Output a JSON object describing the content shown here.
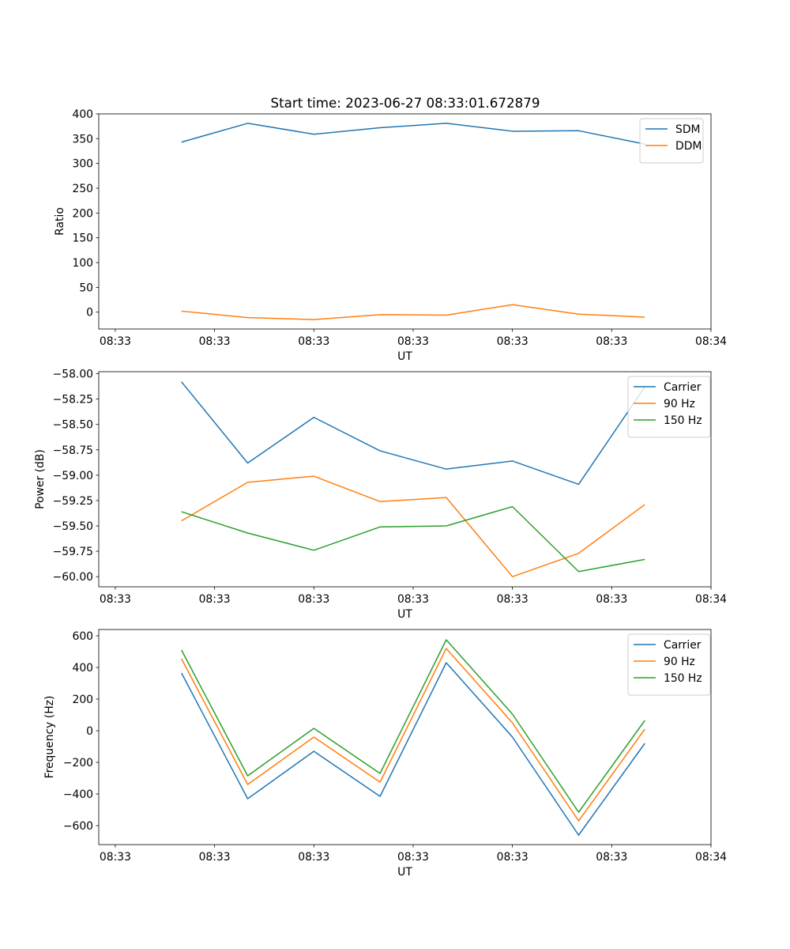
{
  "figure": {
    "title": "Start time: 2023-06-27 08:33:01.672879"
  },
  "chart_data": [
    {
      "type": "line",
      "name": "ratio-panel",
      "x": [
        1,
        2,
        3,
        4,
        5,
        6,
        7,
        8
      ],
      "series": [
        {
          "name": "SDM",
          "color": "#1f77b4",
          "values": [
            343,
            381,
            359,
            372,
            381,
            365,
            366,
            339
          ]
        },
        {
          "name": "DDM",
          "color": "#ff7f0e",
          "values": [
            2,
            -11,
            -15,
            -5,
            -6,
            15,
            -4,
            -10
          ]
        }
      ],
      "xlim": [
        -0.25,
        9.0
      ],
      "ylim": [
        -34,
        400
      ],
      "yticks": [
        0,
        50,
        100,
        150,
        200,
        250,
        300,
        350,
        400
      ],
      "yticklabels": [
        "0",
        "50",
        "100",
        "150",
        "200",
        "250",
        "300",
        "350",
        "400"
      ],
      "xticks": [
        0,
        1.5,
        3,
        4.5,
        6,
        7.5,
        9
      ],
      "xticklabels": [
        "08:33",
        "08:33",
        "08:33",
        "08:33",
        "08:33",
        "08:33",
        "08:34"
      ],
      "xlabel": "UT",
      "ylabel": "Ratio",
      "legend": "top-right"
    },
    {
      "type": "line",
      "name": "power-panel",
      "x": [
        1,
        2,
        3,
        4,
        5,
        6,
        7,
        8
      ],
      "series": [
        {
          "name": "Carrier",
          "color": "#1f77b4",
          "values": [
            -58.08,
            -58.88,
            -58.43,
            -58.76,
            -58.94,
            -58.86,
            -59.09,
            -58.13
          ]
        },
        {
          "name": "90 Hz",
          "color": "#ff7f0e",
          "values": [
            -59.45,
            -59.07,
            -59.01,
            -59.26,
            -59.22,
            -60.0,
            -59.77,
            -59.29
          ]
        },
        {
          "name": "150 Hz",
          "color": "#2ca02c",
          "values": [
            -59.36,
            -59.57,
            -59.74,
            -59.51,
            -59.5,
            -59.31,
            -59.95,
            -59.83
          ]
        }
      ],
      "xlim": [
        -0.25,
        9.0
      ],
      "ylim": [
        -60.1,
        -57.98
      ],
      "yticks": [
        -60.0,
        -59.75,
        -59.5,
        -59.25,
        -59.0,
        -58.75,
        -58.5,
        -58.25,
        -58.0
      ],
      "yticklabels": [
        "−60.00",
        "−59.75",
        "−59.50",
        "−59.25",
        "−59.00",
        "−58.75",
        "−58.50",
        "−58.25",
        "−58.00"
      ],
      "xticks": [
        0,
        1.5,
        3,
        4.5,
        6,
        7.5,
        9
      ],
      "xticklabels": [
        "08:33",
        "08:33",
        "08:33",
        "08:33",
        "08:33",
        "08:33",
        "08:34"
      ],
      "xlabel": "UT",
      "ylabel": "Power (dB)",
      "legend": "top-right"
    },
    {
      "type": "line",
      "name": "frequency-panel",
      "x": [
        1,
        2,
        3,
        4,
        5,
        6,
        7,
        8
      ],
      "series": [
        {
          "name": "Carrier",
          "color": "#1f77b4",
          "values": [
            365,
            -430,
            -130,
            -415,
            430,
            -40,
            -660,
            -80
          ]
        },
        {
          "name": "90 Hz",
          "color": "#ff7f0e",
          "values": [
            455,
            -340,
            -40,
            -325,
            520,
            50,
            -570,
            10
          ]
        },
        {
          "name": "150 Hz",
          "color": "#2ca02c",
          "values": [
            510,
            -285,
            15,
            -270,
            575,
            105,
            -515,
            65
          ]
        }
      ],
      "xlim": [
        -0.25,
        9.0
      ],
      "ylim": [
        -720,
        640
      ],
      "yticks": [
        -600,
        -400,
        -200,
        0,
        200,
        400,
        600
      ],
      "yticklabels": [
        "−600",
        "−400",
        "−200",
        "0",
        "200",
        "400",
        "600"
      ],
      "xticks": [
        0,
        1.5,
        3,
        4.5,
        6,
        7.5,
        9
      ],
      "xticklabels": [
        "08:33",
        "08:33",
        "08:33",
        "08:33",
        "08:33",
        "08:33",
        "08:34"
      ],
      "xlabel": "UT",
      "ylabel": "Frequency (Hz)",
      "legend": "top-right"
    }
  ]
}
